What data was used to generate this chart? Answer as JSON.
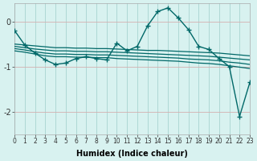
{
  "xlabel": "Humidex (Indice chaleur)",
  "background_color": "#d8f2f0",
  "grid_color": "#a8d4d0",
  "line_color": "#006868",
  "xlim": [
    0,
    23
  ],
  "ylim": [
    -2.5,
    0.4
  ],
  "yticks": [
    0,
    -1,
    -2
  ],
  "xticks": [
    0,
    1,
    2,
    3,
    4,
    5,
    6,
    7,
    8,
    9,
    10,
    11,
    12,
    13,
    14,
    15,
    16,
    17,
    18,
    19,
    20,
    21,
    22,
    23
  ],
  "flat1_x": [
    0,
    1,
    2,
    3,
    4,
    5,
    6,
    7,
    8,
    9,
    10,
    11,
    12,
    13,
    14,
    15,
    16,
    17,
    18,
    19,
    20,
    21,
    22,
    23
  ],
  "flat1_y": [
    -0.5,
    -0.52,
    -0.54,
    -0.56,
    -0.58,
    -0.58,
    -0.59,
    -0.59,
    -0.6,
    -0.6,
    -0.61,
    -0.62,
    -0.63,
    -0.64,
    -0.64,
    -0.65,
    -0.66,
    -0.67,
    -0.68,
    -0.69,
    -0.7,
    -0.72,
    -0.74,
    -0.76
  ],
  "flat2_x": [
    0,
    1,
    2,
    3,
    4,
    5,
    6,
    7,
    8,
    9,
    10,
    11,
    12,
    13,
    14,
    15,
    16,
    17,
    18,
    19,
    20,
    21,
    22,
    23
  ],
  "flat2_y": [
    -0.55,
    -0.58,
    -0.61,
    -0.63,
    -0.65,
    -0.65,
    -0.66,
    -0.66,
    -0.67,
    -0.67,
    -0.68,
    -0.69,
    -0.7,
    -0.71,
    -0.72,
    -0.73,
    -0.74,
    -0.75,
    -0.76,
    -0.77,
    -0.79,
    -0.81,
    -0.83,
    -0.85
  ],
  "flat3_x": [
    0,
    1,
    2,
    3,
    4,
    5,
    6,
    7,
    8,
    9,
    10,
    11,
    12,
    13,
    14,
    15,
    16,
    17,
    18,
    19,
    20,
    21,
    22,
    23
  ],
  "flat3_y": [
    -0.6,
    -0.63,
    -0.67,
    -0.7,
    -0.72,
    -0.72,
    -0.73,
    -0.73,
    -0.74,
    -0.74,
    -0.75,
    -0.76,
    -0.77,
    -0.78,
    -0.79,
    -0.8,
    -0.81,
    -0.83,
    -0.84,
    -0.85,
    -0.87,
    -0.9,
    -0.92,
    -0.95
  ],
  "flat4_x": [
    0,
    1,
    2,
    3,
    4,
    5,
    6,
    7,
    8,
    9,
    10,
    11,
    12,
    13,
    14,
    15,
    16,
    17,
    18,
    19,
    20,
    21,
    22,
    23
  ],
  "flat4_y": [
    -0.65,
    -0.68,
    -0.72,
    -0.76,
    -0.78,
    -0.78,
    -0.79,
    -0.79,
    -0.8,
    -0.8,
    -0.82,
    -0.83,
    -0.84,
    -0.85,
    -0.86,
    -0.87,
    -0.88,
    -0.9,
    -0.92,
    -0.93,
    -0.95,
    -0.98,
    -1.01,
    -1.04
  ],
  "main_x": [
    0,
    1,
    2,
    3,
    4,
    5,
    6,
    7,
    8,
    9,
    10,
    11,
    12,
    13,
    14,
    15,
    16,
    17,
    18,
    19,
    20,
    21,
    22,
    23
  ],
  "main_y": [
    -0.2,
    -0.52,
    -0.7,
    -0.85,
    -0.95,
    -0.92,
    -0.82,
    -0.78,
    -0.82,
    -0.85,
    -0.48,
    -0.65,
    -0.55,
    -0.1,
    0.22,
    0.3,
    0.08,
    -0.18,
    -0.55,
    -0.62,
    -0.82,
    -1.0,
    -2.1,
    -1.35
  ]
}
